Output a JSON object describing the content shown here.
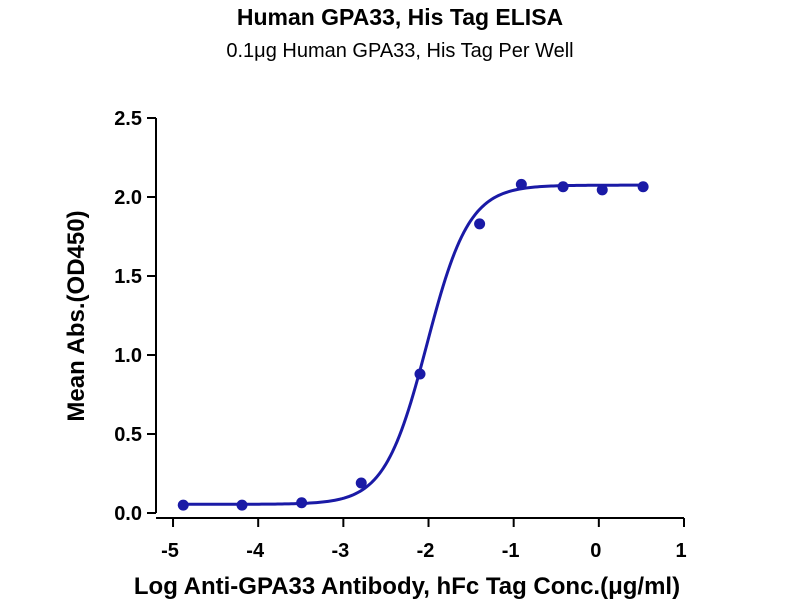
{
  "chart_data": {
    "type": "scatter",
    "title": "Human GPA33, His Tag ELISA",
    "subtitle": "0.1μg Human GPA33, His Tag Per Well",
    "xlabel": "Log Anti-GPA33 Antibody, hFc Tag Conc.(μg/ml)",
    "ylabel": "Mean Abs.(OD450)",
    "xlim": [
      -5.2,
      1
    ],
    "ylim": [
      0,
      2.5
    ],
    "x_ticks": [
      -5,
      -4,
      -3,
      -2,
      -1,
      0,
      1
    ],
    "x_tick_labels": [
      "-5",
      "-4",
      "-3",
      "-2",
      "-1",
      "0",
      "1"
    ],
    "y_ticks": [
      0,
      0.5,
      1.0,
      1.5,
      2.0,
      2.5
    ],
    "y_tick_labels": [
      "0.0",
      "0.5",
      "1.0",
      "1.5",
      "2.0",
      "2.5"
    ],
    "grid": false,
    "legend": "none",
    "series": [
      {
        "color": "#1a1aa6",
        "points": [
          {
            "x": -4.88,
            "y": 0.05
          },
          {
            "x": -4.19,
            "y": 0.05
          },
          {
            "x": -3.49,
            "y": 0.065
          },
          {
            "x": -2.79,
            "y": 0.19
          },
          {
            "x": -2.1,
            "y": 0.88
          },
          {
            "x": -1.4,
            "y": 1.83
          },
          {
            "x": -0.91,
            "y": 2.08
          },
          {
            "x": -0.42,
            "y": 2.065
          },
          {
            "x": 0.04,
            "y": 2.045
          },
          {
            "x": 0.52,
            "y": 2.065
          }
        ],
        "fit": {
          "model": "4PL",
          "bottom": 0.055,
          "top": 2.075,
          "log_ec50": -2.02,
          "hill": 1.75
        }
      }
    ]
  }
}
